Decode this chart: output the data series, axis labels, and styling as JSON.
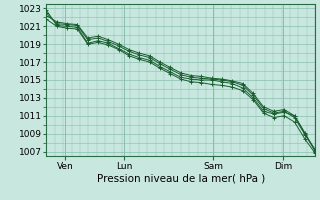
{
  "background_color": "#c8e8df",
  "plot_bg_color": "#c8e8df",
  "grid_color": "#8abfb0",
  "line_color": "#1a5e30",
  "ylabel": "Pression niveau de la mer( hPa )",
  "ylim": [
    1006.5,
    1023.5
  ],
  "yticks": [
    1007,
    1009,
    1011,
    1013,
    1015,
    1017,
    1019,
    1021,
    1023
  ],
  "xtick_labels": [
    "Ven",
    "Lun",
    "Sam",
    "Dim"
  ],
  "xtick_positions": [
    0.07,
    0.29,
    0.62,
    0.88
  ],
  "vline_positions": [
    0.07,
    0.29,
    0.62,
    0.88
  ],
  "lines": [
    [
      1022.8,
      1021.1,
      1021.0,
      1020.9,
      1019.1,
      1019.4,
      1019.1,
      1018.5,
      1017.9,
      1017.5,
      1017.2,
      1016.5,
      1015.9,
      1015.3,
      1015.1,
      1015.0,
      1015.0,
      1014.8,
      1014.6,
      1014.1,
      1013.0,
      1011.5,
      1011.2,
      1011.4,
      1011.0,
      1009.0,
      1007.2
    ],
    [
      1022.5,
      1021.3,
      1021.2,
      1021.1,
      1019.5,
      1019.7,
      1019.3,
      1018.8,
      1018.2,
      1017.8,
      1017.5,
      1016.8,
      1016.2,
      1015.6,
      1015.3,
      1015.2,
      1015.1,
      1015.0,
      1014.8,
      1014.4,
      1013.3,
      1011.8,
      1011.3,
      1011.5,
      1010.8,
      1008.9,
      1007.1
    ],
    [
      1022.2,
      1021.5,
      1021.3,
      1021.2,
      1019.7,
      1019.9,
      1019.5,
      1019.0,
      1018.4,
      1018.0,
      1017.7,
      1017.0,
      1016.4,
      1015.8,
      1015.5,
      1015.4,
      1015.2,
      1015.1,
      1014.9,
      1014.6,
      1013.5,
      1012.0,
      1011.5,
      1011.7,
      1011.0,
      1009.1,
      1007.0
    ],
    [
      1021.8,
      1021.0,
      1020.8,
      1020.7,
      1019.0,
      1019.2,
      1018.9,
      1018.4,
      1017.7,
      1017.3,
      1017.0,
      1016.3,
      1015.7,
      1015.1,
      1014.8,
      1014.7,
      1014.5,
      1014.4,
      1014.2,
      1013.8,
      1012.8,
      1011.3,
      1010.8,
      1011.0,
      1010.3,
      1008.4,
      1006.8
    ]
  ],
  "tick_fontsize": 6.5,
  "xlabel_fontsize": 7.5
}
